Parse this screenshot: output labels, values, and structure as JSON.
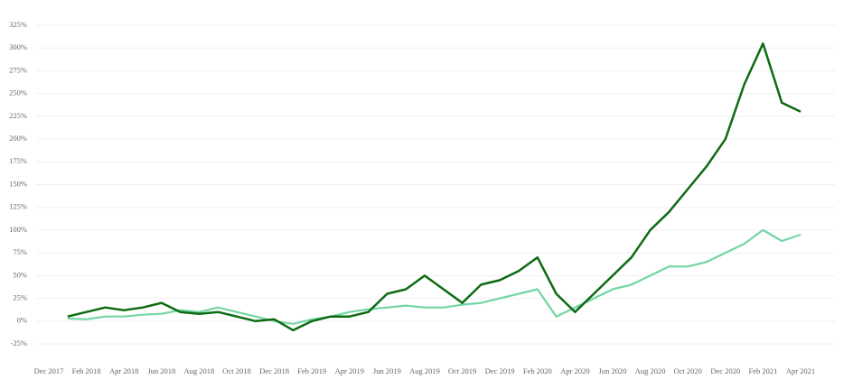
{
  "chart_data": {
    "type": "line",
    "categories": [
      "Dec 2017",
      null,
      "Feb 2018",
      null,
      "Apr 2018",
      null,
      "Jun 2018",
      null,
      "Aug 2018",
      null,
      "Oct 2018",
      null,
      "Dec 2018",
      null,
      "Feb 2019",
      null,
      "Apr 2019",
      null,
      "Jun 2019",
      null,
      "Aug 2019",
      null,
      "Oct 2019",
      null,
      "Dec 2019",
      null,
      "Feb 2020",
      null,
      "Apr 2020",
      null,
      "Jun 2020",
      null,
      "Aug 2020",
      null,
      "Oct 2020",
      null,
      "Dec 2020",
      null,
      "Feb 2021",
      null,
      "Apr 2021"
    ],
    "series": [
      {
        "color": "#72d6a4",
        "values": [
          null,
          3,
          2,
          5,
          5,
          7,
          8,
          12,
          10,
          15,
          10,
          5,
          0,
          -3,
          2,
          5,
          10,
          13,
          15,
          17,
          15,
          15,
          18,
          20,
          25,
          30,
          35,
          5,
          15,
          25,
          35,
          40,
          50,
          60,
          60,
          65,
          75,
          85,
          100,
          88,
          95
        ]
      },
      {
        "color": "#0d6b12",
        "values": [
          null,
          5,
          10,
          15,
          12,
          15,
          20,
          10,
          8,
          10,
          5,
          0,
          2,
          -10,
          0,
          5,
          5,
          10,
          30,
          35,
          50,
          35,
          20,
          40,
          45,
          55,
          70,
          30,
          10,
          30,
          50,
          70,
          100,
          120,
          145,
          170,
          200,
          260,
          305,
          240,
          230
        ]
      }
    ],
    "ylim": [
      -25,
      325
    ],
    "yticks": [
      {
        "value": -25,
        "label": "-25%"
      },
      {
        "value": 0,
        "label": "0%"
      },
      {
        "value": 25,
        "label": "25%"
      },
      {
        "value": 50,
        "label": "50%"
      },
      {
        "value": 75,
        "label": "75%"
      },
      {
        "value": 100,
        "label": "100%"
      },
      {
        "value": 125,
        "label": "125%"
      },
      {
        "value": 150,
        "label": "150%"
      },
      {
        "value": 175,
        "label": "175%"
      },
      {
        "value": 200,
        "label": "200%"
      },
      {
        "value": 225,
        "label": "225%"
      },
      {
        "value": 250,
        "label": "250%"
      },
      {
        "value": 275,
        "label": "275%"
      },
      {
        "value": 300,
        "label": "300%"
      },
      {
        "value": 325,
        "label": "325%"
      }
    ],
    "grid": true
  }
}
